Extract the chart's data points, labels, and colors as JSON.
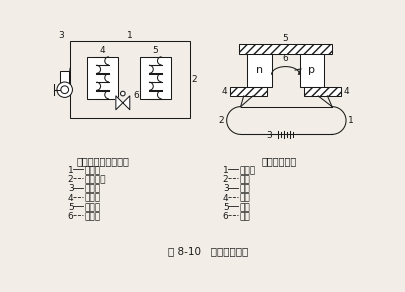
{
  "title": "图 8-10   系统间的类似",
  "left_title": "机械压缩式制冷系统",
  "right_title": "热电制冷系统",
  "left_legend": [
    [
      "1",
      "冷剂流"
    ],
    [
      "2",
      "密闭管路"
    ],
    [
      "3",
      "压缩机"
    ],
    [
      "4",
      "冷凝器"
    ],
    [
      "5",
      "蒸发器"
    ],
    [
      "6",
      "节流阀"
    ]
  ],
  "right_legend": [
    [
      "1",
      "电子流"
    ],
    [
      "2",
      "电路"
    ],
    [
      "3",
      "电源"
    ],
    [
      "4",
      "热端"
    ],
    [
      "5",
      "冷端"
    ],
    [
      "6",
      "能级"
    ]
  ],
  "bg_color": "#f2ede6",
  "line_color": "#1a1a1a",
  "font_size": 6.5,
  "title_font_size": 7.5
}
